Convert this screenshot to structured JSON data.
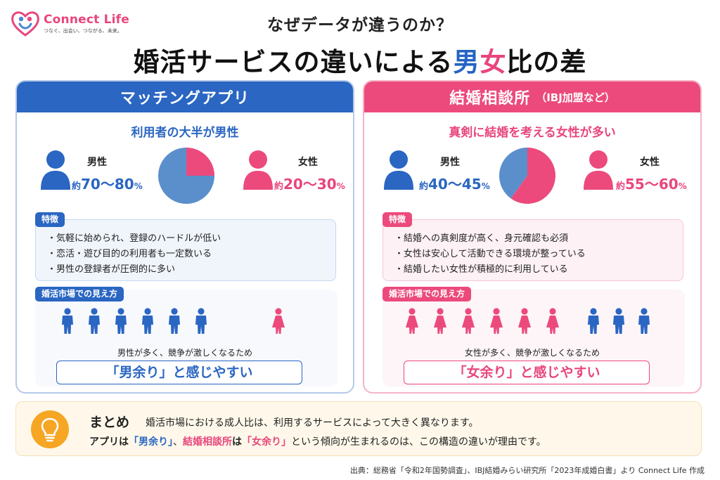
{
  "logo": {
    "name": "Connect Life",
    "tagline": "つなぐ、出会い、つながる、未来。"
  },
  "header": {
    "subtitle": "なぜデータが違うのか？",
    "title_part1": "婚活サービスの違いによる",
    "title_male": "男",
    "title_female": "女",
    "title_part2": "比の差"
  },
  "colors": {
    "male_blue": "#2a66c2",
    "female_pink": "#ec4a7c",
    "pie_blue": "#5b8fcc",
    "pie_pink": "#ec4a7c"
  },
  "left_panel": {
    "title": "マッチングアプリ",
    "subtitle": "利用者の大半が男性",
    "male": {
      "label": "男性",
      "prefix": "約",
      "value": "70～80",
      "unit": "%"
    },
    "female": {
      "label": "女性",
      "prefix": "約",
      "value": "20～30",
      "unit": "%"
    },
    "pie_female_fraction": 0.25,
    "features_tag": "特徴",
    "features": [
      "気軽に始められ、登録のハードルが低い",
      "恋活・遊び目的の利用者も一定数いる",
      "男性の登録者が圧倒的に多い"
    ],
    "view_tag": "婚活市場での見え方",
    "figures": {
      "male": 6,
      "female": 1
    },
    "view_note": "男性が多く、競争が激しくなるため",
    "feel": "「男余り」と感じやすい"
  },
  "right_panel": {
    "title": "結婚相談所",
    "title_small": "（IBJ加盟など）",
    "subtitle": "真剣に結婚を考える女性が多い",
    "male": {
      "label": "男性",
      "prefix": "約",
      "value": "40～45",
      "unit": "%"
    },
    "female": {
      "label": "女性",
      "prefix": "約",
      "value": "55～60",
      "unit": "%"
    },
    "pie_female_fraction": 0.6,
    "features_tag": "特徴",
    "features": [
      "結婚への真剣度が高く、身元確認も必須",
      "女性は安心して活動できる環境が整っている",
      "結婚したい女性が積極的に利用している"
    ],
    "view_tag": "婚活市場での見え方",
    "figures": {
      "female": 6,
      "male": 3
    },
    "view_note": "女性が多く、競争が激しくなるため",
    "feel": "「女余り」と感じやすい"
  },
  "summary": {
    "heading": "まとめ",
    "line1": "婚活市場における成人比は、利用するサービスによって大きく異なります。",
    "line2_a": "アプリは",
    "line2_b": "「男余り」",
    "line2_c": "、",
    "line2_d": "結婚相談所",
    "line2_e": "は",
    "line2_f": "「女余り」",
    "line2_g": "という傾向が生まれるのは、この構造の違いが理由です。"
  },
  "source": "出典：総務省「令和2年国勢調査」、IBJ結婚みらい研究所「2023年成婚白書」より Connect Life 作成"
}
